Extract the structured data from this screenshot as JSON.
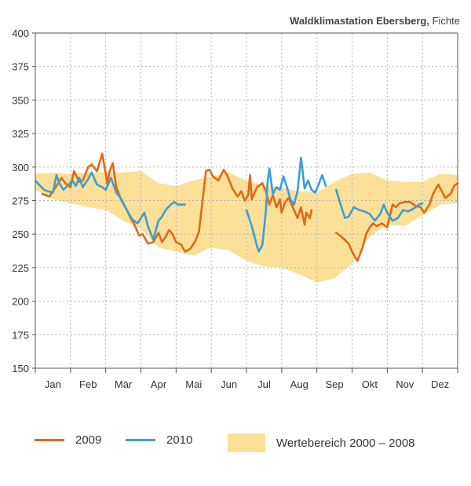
{
  "chart_data": {
    "type": "line",
    "title_bold": "Waldklimastation Ebersberg,",
    "title_rest": " Fichte",
    "ylim": [
      150,
      400
    ],
    "yticks": [
      150,
      175,
      200,
      225,
      250,
      275,
      300,
      325,
      350,
      375,
      400
    ],
    "x_range": [
      0,
      12
    ],
    "months": [
      "Jan",
      "Feb",
      "Mär",
      "Apr",
      "Mai",
      "Jun",
      "Jul",
      "Aug",
      "Sep",
      "Okt",
      "Nov",
      "Dez"
    ],
    "colors": {
      "2009": "#e06914",
      "2010": "#3a9fd6",
      "band": "#fde098",
      "grid": "#b0b0b0"
    },
    "legend": [
      "2009",
      "2010",
      "Wertebereich 2000 – 2008"
    ],
    "band": {
      "name": "Wertebereich 2000 – 2008",
      "x": [
        0.0,
        0.5,
        1.0,
        1.5,
        2.0,
        2.5,
        3.0,
        3.5,
        4.0,
        4.5,
        5.0,
        5.5,
        6.0,
        6.5,
        7.0,
        7.5,
        8.0,
        8.5,
        9.0,
        9.5,
        10.0,
        10.5,
        11.0,
        11.5,
        12.0
      ],
      "upper": [
        295,
        296,
        295,
        296,
        296,
        296,
        297,
        288,
        286,
        290,
        293,
        296,
        290,
        286,
        285,
        282,
        281,
        289,
        295,
        296,
        290,
        289,
        289,
        295,
        294
      ],
      "lower": [
        283,
        276,
        273,
        270,
        268,
        260,
        254,
        240,
        237,
        234,
        240,
        238,
        230,
        226,
        225,
        220,
        214,
        217,
        228,
        248,
        257,
        256,
        264,
        272,
        273
      ]
    },
    "series": [
      {
        "name": "2009",
        "segments": [
          {
            "x": [
              0.2,
              0.4,
              0.6,
              0.75,
              0.85,
              1.0,
              1.1,
              1.25,
              1.35,
              1.5,
              1.6,
              1.75,
              1.9,
              2.0,
              2.05,
              2.1,
              2.2,
              2.3,
              2.45,
              2.6,
              2.7,
              2.8,
              2.9,
              2.95,
              3.05,
              3.2,
              3.35,
              3.5,
              3.6,
              3.7,
              3.8,
              3.9,
              4.0,
              4.15,
              4.25,
              4.4,
              4.55,
              4.65,
              4.75,
              4.85,
              4.95,
              5.05,
              5.2,
              5.35,
              5.45,
              5.6,
              5.75,
              5.85,
              5.95,
              6.05,
              6.1,
              6.15,
              6.3,
              6.45,
              6.55,
              6.65,
              6.75,
              6.85,
              6.95,
              7.0,
              7.1,
              7.2,
              7.35,
              7.45,
              7.55,
              7.65,
              7.7,
              7.8,
              7.85
            ],
            "y": [
              280,
              278,
              286,
              292,
              288,
              285,
              297,
              289,
              290,
              300,
              302,
              297,
              310,
              295,
              287,
              296,
              303,
              285,
              275,
              268,
              262,
              258,
              252,
              249,
              250,
              243,
              244,
              251,
              244,
              248,
              253,
              250,
              244,
              242,
              237,
              239,
              245,
              252,
              275,
              297,
              298,
              293,
              290,
              298,
              294,
              284,
              278,
              282,
              275,
              279,
              294,
              276,
              285,
              288,
              282,
              272,
              279,
              270,
              276,
              266,
              274,
              277,
              268,
              262,
              270,
              257,
              266,
              262,
              268
            ]
          },
          {
            "x": [
              8.55,
              8.7,
              8.9,
              9.0,
              9.15,
              9.3,
              9.4,
              9.5,
              9.6,
              9.7,
              9.85,
              10.0,
              10.15,
              10.25,
              10.35,
              10.5,
              10.65,
              10.8,
              10.95,
              11.05,
              11.2,
              11.3,
              11.45,
              11.55,
              11.65,
              11.8,
              11.9,
              12.0
            ],
            "y": [
              251,
              248,
              243,
              237,
              230,
              240,
              250,
              255,
              258,
              256,
              258,
              255,
              272,
              270,
              273,
              274,
              274,
              271,
              270,
              266,
              272,
              280,
              287,
              282,
              277,
              280,
              286,
              288
            ]
          }
        ]
      },
      {
        "name": "2010",
        "segments": [
          {
            "x": [
              0.0,
              0.1,
              0.25,
              0.35,
              0.5,
              0.6,
              0.7,
              0.8,
              0.95,
              1.05,
              1.15,
              1.25,
              1.35,
              1.5,
              1.6,
              1.75,
              1.9,
              2.0,
              2.15,
              2.3,
              2.45,
              2.6,
              2.75,
              2.9,
              3.0,
              3.1,
              3.2,
              3.35,
              3.5,
              3.6,
              3.7,
              3.85,
              3.95,
              4.05,
              4.15,
              4.25
            ],
            "y": [
              290,
              287,
              283,
              282,
              281,
              294,
              287,
              283,
              287,
              290,
              286,
              292,
              285,
              291,
              296,
              287,
              285,
              283,
              292,
              281,
              276,
              268,
              261,
              258,
              262,
              266,
              256,
              246,
              260,
              263,
              268,
              272,
              274,
              272,
              272,
              272
            ]
          },
          {
            "x": [
              6.0,
              6.15,
              6.25,
              6.3,
              6.35,
              6.45,
              6.55,
              6.6,
              6.65,
              6.75,
              6.85,
              6.95,
              7.05,
              7.15,
              7.25,
              7.35,
              7.45,
              7.55,
              7.65,
              7.75,
              7.85,
              7.95,
              8.05,
              8.15,
              8.25
            ],
            "y": [
              268,
              256,
              246,
              241,
              237,
              242,
              267,
              289,
              299,
              280,
              285,
              283,
              293,
              285,
              276,
              272,
              282,
              307,
              284,
              290,
              283,
              281,
              287,
              294,
              286
            ]
          },
          {
            "x": [
              8.55,
              8.65,
              8.8,
              8.9,
              9.05,
              9.2,
              9.35,
              9.5,
              9.65,
              9.8,
              9.9,
              10.0,
              10.15,
              10.3,
              10.45,
              10.6,
              10.75,
              10.9,
              11.0
            ],
            "y": [
              283,
              274,
              262,
              263,
              270,
              268,
              267,
              265,
              260,
              265,
              272,
              266,
              260,
              262,
              268,
              267,
              269,
              272,
              273
            ]
          }
        ]
      }
    ]
  }
}
